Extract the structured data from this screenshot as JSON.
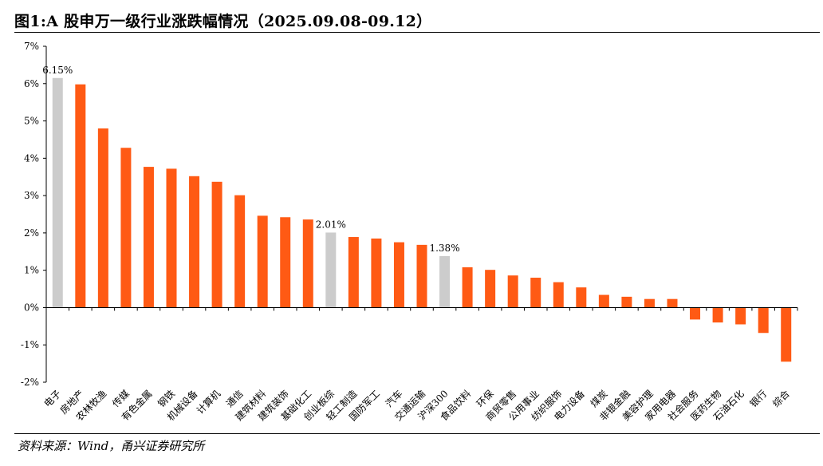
{
  "title": "图1:A 股申万一级行业涨跌幅情况（2025.09.08-09.12）",
  "source": "资料来源：Wind，甬兴证券研究所",
  "colors": {
    "industry": "#FF5A14",
    "index": "#CCCCCC",
    "axis": "#000000"
  },
  "chart_data": {
    "type": "bar",
    "ylim": [
      -2,
      7
    ],
    "yticks": [
      -2,
      -1,
      0,
      1,
      2,
      3,
      4,
      5,
      6,
      7
    ],
    "ytick_labels": [
      "-2%",
      "-1%",
      "0%",
      "1%",
      "2%",
      "3%",
      "4%",
      "5%",
      "6%",
      "7%"
    ],
    "grid": false,
    "categories": [
      "电子",
      "房地产",
      "农林牧渔",
      "传媒",
      "有色金属",
      "钢铁",
      "机械设备",
      "计算机",
      "通信",
      "建筑材料",
      "建筑装饰",
      "基础化工",
      "创业板综",
      "轻工制造",
      "国防军工",
      "汽车",
      "交通运输",
      "沪深300",
      "食品饮料",
      "环保",
      "商贸零售",
      "公用事业",
      "纺织服饰",
      "电力设备",
      "煤炭",
      "非银金融",
      "美容护理",
      "家用电器",
      "社会服务",
      "医药生物",
      "石油石化",
      "银行",
      "综合"
    ],
    "values": [
      6.15,
      5.98,
      4.8,
      4.28,
      3.77,
      3.72,
      3.52,
      3.37,
      3.01,
      2.46,
      2.42,
      2.36,
      2.01,
      1.89,
      1.85,
      1.75,
      1.68,
      1.38,
      1.08,
      1.01,
      0.86,
      0.8,
      0.68,
      0.54,
      0.34,
      0.29,
      0.23,
      0.23,
      -0.32,
      -0.4,
      -0.45,
      -0.68,
      -1.45
    ],
    "highlight": [
      0,
      12,
      17
    ],
    "data_labels": [
      {
        "index": 0,
        "text": "6.15%"
      },
      {
        "index": 12,
        "text": "2.01%"
      },
      {
        "index": 17,
        "text": "1.38%"
      }
    ]
  }
}
